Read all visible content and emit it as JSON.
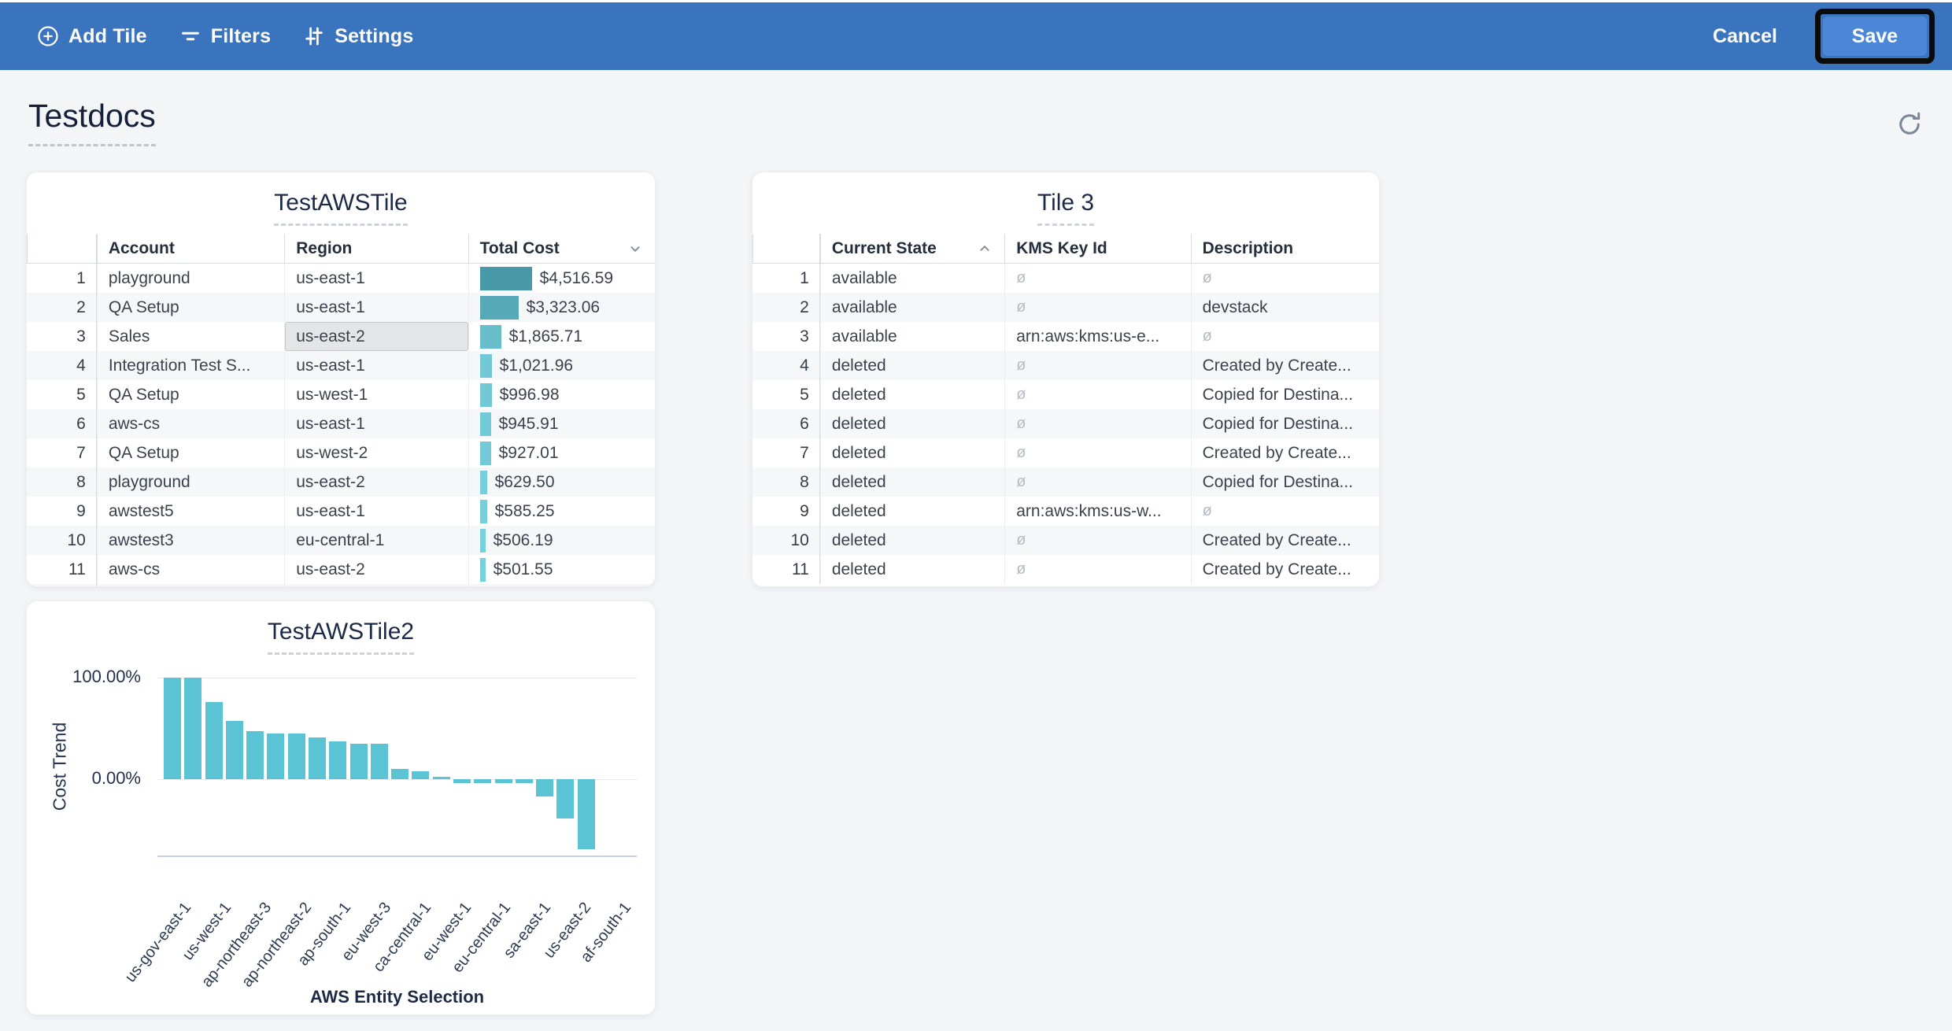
{
  "toolbar": {
    "bg_color": "#3a74bf",
    "add_tile_label": "Add Tile",
    "filters_label": "Filters",
    "settings_label": "Settings",
    "cancel_label": "Cancel",
    "save_label": "Save",
    "save_button_color": "#4c87d7",
    "save_highlight_color": "#0b0b0b"
  },
  "page": {
    "title": "Testdocs",
    "background": "#f4f5f7"
  },
  "tiles": {
    "tile1": {
      "title": "TestAWSTile",
      "columns": [
        "Account",
        "Region",
        "Total Cost"
      ],
      "sort": {
        "column": "Total Cost",
        "direction": "desc"
      },
      "selected_cell": {
        "row": 3,
        "column": "region"
      },
      "bar_color_low": "#7ed7e2",
      "bar_color_high": "#4799a7",
      "partial_next_bar": true,
      "rows": [
        {
          "num": "1",
          "account": "playground",
          "region": "us-east-1",
          "total_cost": "$4,516.59",
          "value": 4516.59
        },
        {
          "num": "2",
          "account": "QA Setup",
          "region": "us-east-1",
          "total_cost": "$3,323.06",
          "value": 3323.06
        },
        {
          "num": "3",
          "account": "Sales",
          "region": "us-east-2",
          "total_cost": "$1,865.71",
          "value": 1865.71
        },
        {
          "num": "4",
          "account": "Integration Test S...",
          "region": "us-east-1",
          "total_cost": "$1,021.96",
          "value": 1021.96
        },
        {
          "num": "5",
          "account": "QA Setup",
          "region": "us-west-1",
          "total_cost": "$996.98",
          "value": 996.98
        },
        {
          "num": "6",
          "account": "aws-cs",
          "region": "us-east-1",
          "total_cost": "$945.91",
          "value": 945.91
        },
        {
          "num": "7",
          "account": "QA Setup",
          "region": "us-west-2",
          "total_cost": "$927.01",
          "value": 927.01
        },
        {
          "num": "8",
          "account": "playground",
          "region": "us-east-2",
          "total_cost": "$629.50",
          "value": 629.5
        },
        {
          "num": "9",
          "account": "awstest5",
          "region": "us-east-1",
          "total_cost": "$585.25",
          "value": 585.25
        },
        {
          "num": "10",
          "account": "awstest3",
          "region": "eu-central-1",
          "total_cost": "$506.19",
          "value": 506.19
        },
        {
          "num": "11",
          "account": "aws-cs",
          "region": "us-east-2",
          "total_cost": "$501.55",
          "value": 501.55
        }
      ]
    },
    "tile3": {
      "title": "Tile 3",
      "columns": [
        "Current State",
        "KMS Key Id",
        "Description"
      ],
      "sort": {
        "column": "Current State",
        "direction": "asc"
      },
      "null_symbol": "ø",
      "rows": [
        {
          "num": "1",
          "state": "available",
          "kms": null,
          "description": null
        },
        {
          "num": "2",
          "state": "available",
          "kms": null,
          "description": "devstack"
        },
        {
          "num": "3",
          "state": "available",
          "kms": "arn:aws:kms:us-e...",
          "description": null
        },
        {
          "num": "4",
          "state": "deleted",
          "kms": null,
          "description": "Created by Create..."
        },
        {
          "num": "5",
          "state": "deleted",
          "kms": null,
          "description": "Copied for Destina..."
        },
        {
          "num": "6",
          "state": "deleted",
          "kms": null,
          "description": "Copied for Destina..."
        },
        {
          "num": "7",
          "state": "deleted",
          "kms": null,
          "description": "Created by Create..."
        },
        {
          "num": "8",
          "state": "deleted",
          "kms": null,
          "description": "Copied for Destina..."
        },
        {
          "num": "9",
          "state": "deleted",
          "kms": "arn:aws:kms:us-w...",
          "description": null
        },
        {
          "num": "10",
          "state": "deleted",
          "kms": null,
          "description": "Created by Create..."
        },
        {
          "num": "11",
          "state": "deleted",
          "kms": null,
          "description": "Created by Create..."
        }
      ]
    }
  },
  "chart_data": {
    "type": "bar",
    "title": "TestAWSTile2",
    "xlabel": "AWS Entity Selection",
    "ylabel": "Cost Trend",
    "y_ticks": [
      "100.00%",
      "0.00%"
    ],
    "ylim": [
      -76,
      100
    ],
    "grid": "horizontal",
    "legend": "none",
    "bar_color": "#5bc4d4",
    "values_pct": [
      100,
      100,
      76,
      57,
      47,
      45,
      45,
      41,
      37,
      35,
      35,
      10,
      8,
      2,
      -4,
      -4,
      -4,
      -4,
      -17,
      -39,
      -69
    ],
    "x_tick_labels": [
      "us-gov-east-1",
      "us-west-1",
      "ap-northeast-3",
      "ap-northeast-2",
      "ap-south-1",
      "eu-west-3",
      "ca-central-1",
      "eu-west-1",
      "eu-central-1",
      "sa-east-1",
      "us-east-2",
      "af-south-1"
    ],
    "x_label_interval": "auto-skip"
  }
}
